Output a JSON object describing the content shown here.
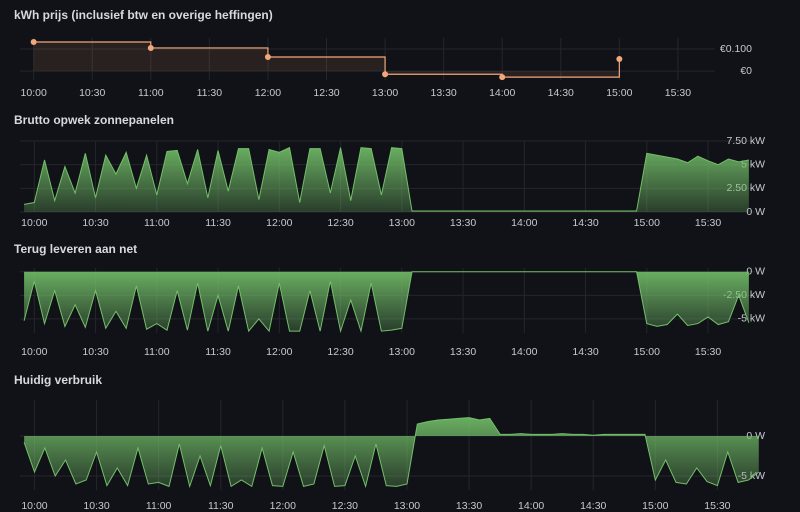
{
  "chart_data": [
    {
      "type": "step",
      "title": "kWh prijs (inclusief btw en overige heffingen)",
      "color": "#f2a77a",
      "grid": true,
      "x": [
        "10:00",
        "11:00",
        "12:00",
        "13:00",
        "14:00",
        "15:00"
      ],
      "values": [
        0.132,
        0.105,
        0.064,
        -0.014,
        -0.027,
        0.055
      ],
      "xlim": [
        "09:53",
        "15:49"
      ],
      "xticks": [
        "10:00",
        "10:30",
        "11:00",
        "11:30",
        "12:00",
        "12:30",
        "13:00",
        "13:30",
        "14:00",
        "14:30",
        "15:00",
        "15:30"
      ],
      "ylim": [
        -0.04,
        0.15
      ],
      "yticks": [
        {
          "value": 0,
          "label": "€0"
        },
        {
          "value": 0.1,
          "label": "€0.100"
        }
      ]
    },
    {
      "type": "area",
      "title": "Brutto opwek zonnepanelen",
      "color": "#73bf69",
      "grid": true,
      "x": [
        "09:55",
        "10:00",
        "10:05",
        "10:10",
        "10:15",
        "10:20",
        "10:25",
        "10:30",
        "10:35",
        "10:40",
        "10:45",
        "10:50",
        "10:55",
        "11:00",
        "11:05",
        "11:10",
        "11:15",
        "11:20",
        "11:25",
        "11:30",
        "11:35",
        "11:40",
        "11:45",
        "11:50",
        "11:55",
        "12:00",
        "12:05",
        "12:10",
        "12:15",
        "12:20",
        "12:25",
        "12:30",
        "12:35",
        "12:40",
        "12:45",
        "12:50",
        "12:55",
        "13:00",
        "13:05",
        "13:10",
        "13:15",
        "13:20",
        "13:25",
        "13:30",
        "13:35",
        "13:40",
        "13:45",
        "13:50",
        "13:55",
        "14:00",
        "14:05",
        "14:10",
        "14:15",
        "14:20",
        "14:25",
        "14:30",
        "14:35",
        "14:40",
        "14:45",
        "14:50",
        "14:55",
        "15:00",
        "15:05",
        "15:10",
        "15:15",
        "15:20",
        "15:25",
        "15:30",
        "15:35",
        "15:40",
        "15:45",
        "15:50"
      ],
      "values": [
        0.8,
        1.0,
        5.5,
        1.2,
        4.8,
        2.0,
        6.2,
        1.5,
        6.0,
        4.0,
        6.3,
        2.5,
        6.0,
        1.8,
        6.4,
        6.5,
        3.0,
        6.6,
        1.5,
        6.5,
        2.2,
        6.7,
        6.7,
        1.3,
        6.6,
        6.3,
        6.8,
        1.0,
        6.7,
        6.7,
        2.0,
        6.8,
        1.2,
        6.8,
        6.7,
        1.8,
        6.8,
        6.7,
        0.1,
        0.1,
        0.1,
        0.1,
        0.1,
        0.1,
        0.1,
        0.1,
        0.1,
        0.1,
        0.1,
        0.1,
        0.1,
        0.1,
        0.1,
        0.1,
        0.1,
        0.1,
        0.1,
        0.1,
        0.1,
        0.1,
        0.1,
        6.2,
        6.0,
        5.8,
        5.6,
        5.2,
        5.9,
        5.4,
        5.0,
        5.6,
        5.3,
        5.5
      ],
      "xlim": [
        "09:53",
        "15:53"
      ],
      "xticks": [
        "10:00",
        "10:30",
        "11:00",
        "11:30",
        "12:00",
        "12:30",
        "13:00",
        "13:30",
        "14:00",
        "14:30",
        "15:00",
        "15:30"
      ],
      "ylim": [
        0,
        7.5
      ],
      "yticks": [
        {
          "value": 0,
          "label": "0 W"
        },
        {
          "value": 2.5,
          "label": "2.50 kW"
        },
        {
          "value": 5,
          "label": "5 kW"
        },
        {
          "value": 7.5,
          "label": "7.50 kW"
        }
      ]
    },
    {
      "type": "area",
      "title": "Terug leveren aan net",
      "color": "#73bf69",
      "grid": true,
      "x": [
        "09:55",
        "10:00",
        "10:05",
        "10:10",
        "10:15",
        "10:20",
        "10:25",
        "10:30",
        "10:35",
        "10:40",
        "10:45",
        "10:50",
        "10:55",
        "11:00",
        "11:05",
        "11:10",
        "11:15",
        "11:20",
        "11:25",
        "11:30",
        "11:35",
        "11:40",
        "11:45",
        "11:50",
        "11:55",
        "12:00",
        "12:05",
        "12:10",
        "12:15",
        "12:20",
        "12:25",
        "12:30",
        "12:35",
        "12:40",
        "12:45",
        "12:50",
        "12:55",
        "13:00",
        "13:05",
        "13:10",
        "13:15",
        "13:20",
        "13:25",
        "13:30",
        "13:35",
        "13:40",
        "13:45",
        "13:50",
        "13:55",
        "14:00",
        "14:05",
        "14:10",
        "14:15",
        "14:20",
        "14:25",
        "14:30",
        "14:35",
        "14:40",
        "14:45",
        "14:50",
        "14:55",
        "15:00",
        "15:05",
        "15:10",
        "15:15",
        "15:20",
        "15:25",
        "15:30",
        "15:35",
        "15:40",
        "15:45",
        "15:50"
      ],
      "values": [
        -5.2,
        -1.0,
        -5.5,
        -2.0,
        -5.8,
        -3.5,
        -5.9,
        -2.0,
        -6.0,
        -4.2,
        -6.0,
        -1.5,
        -6.1,
        -5.5,
        -6.2,
        -2.0,
        -6.2,
        -1.2,
        -6.3,
        -2.5,
        -6.3,
        -1.5,
        -6.3,
        -5.0,
        -6.3,
        -1.2,
        -6.3,
        -6.3,
        -2.0,
        -6.3,
        -1.0,
        -6.3,
        -3.0,
        -6.3,
        -1.2,
        -6.3,
        -6.2,
        -6.0,
        0,
        0,
        0,
        0,
        0,
        0,
        0,
        0,
        0,
        0,
        0,
        0,
        0,
        0,
        0,
        0,
        0,
        0,
        0,
        0,
        0,
        0,
        0,
        -5.5,
        -5.8,
        -5.6,
        -4.5,
        -5.7,
        -5.5,
        -4.8,
        -5.6,
        -5.3,
        -2.5,
        -5.4
      ],
      "xlim": [
        "09:53",
        "15:53"
      ],
      "xticks": [
        "10:00",
        "10:30",
        "11:00",
        "11:30",
        "12:00",
        "12:30",
        "13:00",
        "13:30",
        "14:00",
        "14:30",
        "15:00",
        "15:30"
      ],
      "ylim": [
        -6.5,
        0.4
      ],
      "yticks": [
        {
          "value": 0,
          "label": "0 W"
        },
        {
          "value": -2.5,
          "label": "-2.50 kW"
        },
        {
          "value": -5,
          "label": "-5 kW"
        }
      ]
    },
    {
      "type": "area",
      "title": "Huidig verbruik",
      "color": "#73bf69",
      "grid": true,
      "x": [
        "09:55",
        "10:00",
        "10:05",
        "10:10",
        "10:15",
        "10:20",
        "10:25",
        "10:30",
        "10:35",
        "10:40",
        "10:45",
        "10:50",
        "10:55",
        "11:00",
        "11:05",
        "11:10",
        "11:15",
        "11:20",
        "11:25",
        "11:30",
        "11:35",
        "11:40",
        "11:45",
        "11:50",
        "11:55",
        "12:00",
        "12:05",
        "12:10",
        "12:15",
        "12:20",
        "12:25",
        "12:30",
        "12:35",
        "12:40",
        "12:45",
        "12:50",
        "12:55",
        "13:00",
        "13:05",
        "13:10",
        "13:15",
        "13:20",
        "13:25",
        "13:30",
        "13:35",
        "13:40",
        "13:45",
        "13:50",
        "13:55",
        "14:00",
        "14:05",
        "14:10",
        "14:15",
        "14:20",
        "14:25",
        "14:30",
        "14:35",
        "14:40",
        "14:45",
        "14:50",
        "14:55",
        "15:00",
        "15:05",
        "15:10",
        "15:15",
        "15:20",
        "15:25",
        "15:30",
        "15:35",
        "15:40",
        "15:45",
        "15:50"
      ],
      "values": [
        -0.8,
        -4.5,
        -1.5,
        -5.0,
        -3.0,
        -6.0,
        -5.5,
        -2.0,
        -6.2,
        -4.0,
        -6.2,
        -1.5,
        -6.0,
        -5.8,
        -6.3,
        -1.0,
        -6.3,
        -2.5,
        -6.2,
        -1.2,
        -6.3,
        -5.5,
        -6.3,
        -1.5,
        -6.2,
        -6.3,
        -2.0,
        -6.3,
        -6.0,
        -1.2,
        -6.3,
        -6.2,
        -2.5,
        -6.3,
        -1.0,
        -6.2,
        -6.3,
        -6.0,
        1.5,
        1.8,
        2.0,
        2.1,
        2.2,
        2.3,
        2.0,
        2.2,
        0.2,
        0.2,
        0.3,
        0.2,
        0.2,
        0.2,
        0.3,
        0.2,
        0.2,
        0.1,
        0.2,
        0.2,
        0.2,
        0.2,
        0.2,
        -5.5,
        -3.0,
        -5.8,
        -6.0,
        -4.0,
        -5.7,
        -6.2,
        -2.0,
        -5.8,
        -5.5,
        -4.5
      ],
      "xlim": [
        "09:53",
        "15:53"
      ],
      "xticks": [
        "10:00",
        "10:30",
        "11:00",
        "11:30",
        "12:00",
        "12:30",
        "13:00",
        "13:30",
        "14:00",
        "14:30",
        "15:00",
        "15:30"
      ],
      "ylim": [
        -6.75,
        4.5
      ],
      "yticks": [
        {
          "value": 0,
          "label": "0 W"
        },
        {
          "value": -5,
          "label": "-5 kW"
        }
      ]
    }
  ]
}
